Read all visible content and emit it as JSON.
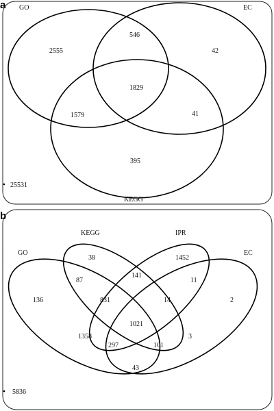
{
  "figure": {
    "panel_a": {
      "letter": "a",
      "sets": {
        "go": "GO",
        "ec": "EC",
        "kegg": "KEGG"
      },
      "regions": {
        "go_only": "2555",
        "go_ec": "546",
        "ec_only": "42",
        "all": "1829",
        "go_kegg": "1579",
        "ec_kegg": "41",
        "kegg_only": "395"
      },
      "outside": "25531"
    },
    "panel_b": {
      "letter": "b",
      "sets": {
        "go": "GO",
        "kegg": "KEGG",
        "ipr": "IPR",
        "ec": "EC"
      },
      "regions": {
        "kegg_only": "38",
        "ipr_only": "1452",
        "go_only": "136",
        "ec_only": "2",
        "go_kegg": "87",
        "kegg_ipr": "141",
        "ipr_ec": "11",
        "go_kegg_ipr": "831",
        "kegg_ipr_ec": "14",
        "all": "1021",
        "go_ipr": "1358",
        "kegg_ec": "3",
        "go_kegg_ec": "297",
        "go_ipr_ec": "101",
        "go_ec": "43"
      },
      "outside": "5836"
    }
  }
}
